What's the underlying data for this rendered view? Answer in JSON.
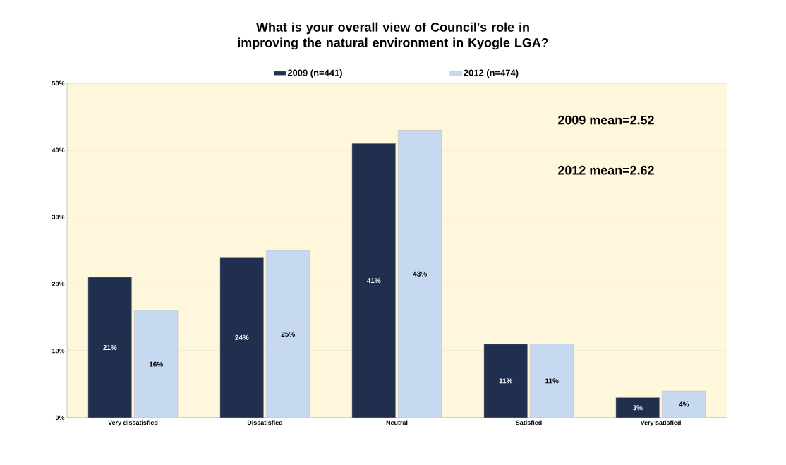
{
  "chart_data": {
    "type": "bar",
    "title": "What is your overall view of Council's role in improving the natural environment in Kyogle LGA?",
    "categories": [
      "Very dissatisfied",
      "Dissatisfied",
      "Neutral",
      "Satisfied",
      "Very satisfied"
    ],
    "series": [
      {
        "name": "2009 (n=441)",
        "color": "#1f2f4d",
        "values": [
          21,
          24,
          41,
          11,
          3
        ],
        "value_labels": [
          "21%",
          "24%",
          "41%",
          "11%",
          "3%"
        ]
      },
      {
        "name": "2012 (n=474)",
        "color": "#c6d9f1",
        "values": [
          16,
          25,
          43,
          11,
          4
        ],
        "value_labels": [
          "16%",
          "25%",
          "43%",
          "11%",
          "4%"
        ]
      }
    ],
    "ylim": [
      0,
      50
    ],
    "yticks": [
      {
        "value": 0,
        "label": "0%"
      },
      {
        "value": 10,
        "label": "10%"
      },
      {
        "value": 20,
        "label": "20%"
      },
      {
        "value": 30,
        "label": "30%"
      },
      {
        "value": 40,
        "label": "40%"
      },
      {
        "value": 50,
        "label": "50%"
      }
    ],
    "grid": "y",
    "legend": "top",
    "annotations": [
      "2009 mean=2.52",
      "2012 mean=2.62"
    ]
  }
}
